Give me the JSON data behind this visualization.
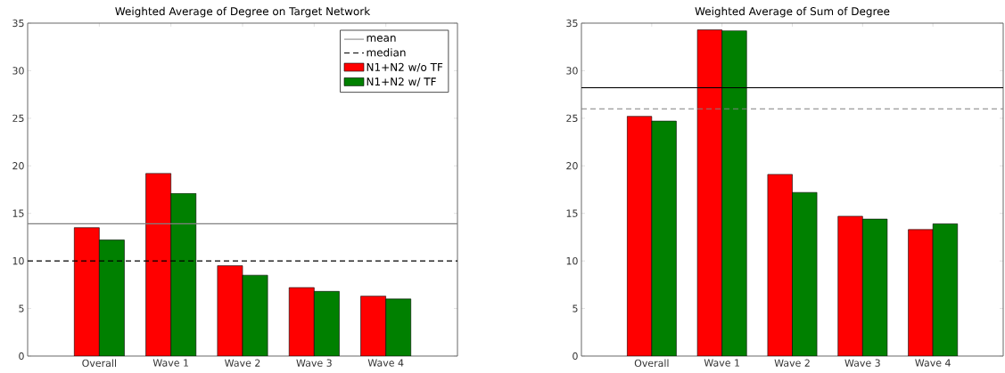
{
  "chart_data": [
    {
      "type": "bar",
      "title": "Weighted Average of Degree on Target Network",
      "categories": [
        "Overall",
        "Wave 1",
        "Wave 2",
        "Wave 3",
        "Wave 4"
      ],
      "series": [
        {
          "name": "N1+N2 w/o TF",
          "color": "#ff0000",
          "values": [
            13.5,
            19.2,
            9.5,
            7.2,
            6.3
          ]
        },
        {
          "name": "N1+N2 w/ TF",
          "color": "#008000",
          "values": [
            12.2,
            17.1,
            8.5,
            6.8,
            6.0
          ]
        }
      ],
      "ylim": [
        0,
        35
      ],
      "yticks": [
        0,
        5,
        10,
        15,
        20,
        25,
        30,
        35
      ],
      "ref_lines": [
        {
          "axis": "y",
          "value": 13.9,
          "label": "mean",
          "color": "#808080",
          "line_style": "solid"
        },
        {
          "axis": "y",
          "value": 10,
          "label": "median",
          "color": "#000000",
          "line_style": "dashed"
        }
      ],
      "legend": "top right",
      "grid": false
    },
    {
      "type": "bar",
      "title": "Weighted Average of Sum of Degree",
      "categories": [
        "Overall",
        "Wave 1",
        "Wave 2",
        "Wave 3",
        "Wave 4"
      ],
      "series": [
        {
          "color": "#ff0000",
          "values": [
            25.2,
            34.3,
            19.1,
            14.7,
            13.3
          ]
        },
        {
          "color": "#008000",
          "values": [
            24.7,
            34.2,
            17.2,
            14.4,
            13.9
          ]
        }
      ],
      "ylim": [
        0,
        35
      ],
      "yticks": [
        0,
        5,
        10,
        15,
        20,
        25,
        30,
        35
      ],
      "ref_lines": [
        {
          "axis": "y",
          "value": 28.2,
          "color": "#000000",
          "line_style": "solid"
        },
        {
          "axis": "y",
          "value": 26,
          "color": "#808080",
          "line_style": "dashed"
        }
      ],
      "legend": false,
      "grid": false
    }
  ]
}
